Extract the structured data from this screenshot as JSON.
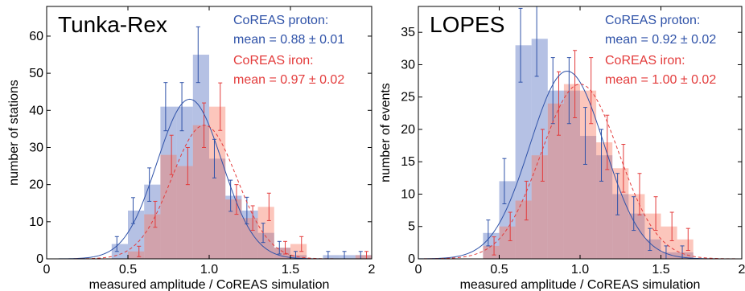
{
  "chart_data": [
    {
      "type": "bar",
      "panel_label": "Tunka-Rex",
      "xlabel": "measured amplitude / CoREAS simulation",
      "ylabel": "number of stations",
      "xlim": [
        0,
        2
      ],
      "ylim": [
        0,
        68
      ],
      "xticks": [
        0,
        0.5,
        1.0,
        1.5,
        2
      ],
      "xtick_labels": [
        "0",
        "0.5",
        "1.0",
        "1.5",
        "2"
      ],
      "yticks": [
        0,
        10,
        20,
        30,
        40,
        50,
        60
      ],
      "bin_width": 0.1,
      "bins_left": [
        0.3,
        0.4,
        0.5,
        0.6,
        0.7,
        0.8,
        0.9,
        1.0,
        1.1,
        1.2,
        1.3,
        1.4,
        1.5,
        1.6,
        1.7,
        1.8,
        1.9
      ],
      "series": [
        {
          "label": "CoREAS proton:",
          "stat": "mean = 0.88 ± 0.01",
          "color": "#2f52a8",
          "values": [
            0,
            4,
            13,
            20,
            41,
            41,
            55,
            27,
            17,
            13,
            7,
            3,
            1,
            0,
            1,
            1,
            1
          ],
          "errors": [
            0,
            2,
            3.5,
            4.5,
            6.5,
            6.5,
            7.5,
            5.2,
            4.2,
            3.6,
            2.6,
            1.7,
            1,
            0,
            1,
            1,
            1
          ],
          "fit": {
            "mu": 0.88,
            "sigma": 0.2,
            "amp": 43
          }
        },
        {
          "label": "CoREAS iron:",
          "stat": "mean = 0.97 ± 0.02",
          "color": "#e33b3b",
          "values": [
            0,
            0,
            2,
            12,
            28,
            25,
            36,
            41,
            16,
            11,
            14,
            3,
            4,
            0,
            0,
            0,
            1
          ],
          "errors": [
            0,
            0,
            1.4,
            3.5,
            5.3,
            5,
            6,
            6.4,
            4,
            3.3,
            3.7,
            1.7,
            2,
            0,
            0,
            0,
            1
          ],
          "fit": {
            "mu": 0.97,
            "sigma": 0.2,
            "amp": 36
          }
        }
      ]
    },
    {
      "type": "bar",
      "panel_label": "LOPES",
      "xlabel": "measured amplitude / CoREAS simulation",
      "ylabel": "number of events",
      "xlim": [
        0,
        2
      ],
      "ylim": [
        0,
        39
      ],
      "xticks": [
        0,
        0.5,
        1.0,
        1.5,
        2
      ],
      "xtick_labels": [
        "0",
        "0.5",
        "1.0",
        "1.5",
        "2"
      ],
      "yticks": [
        0,
        5,
        10,
        15,
        20,
        25,
        30,
        35
      ],
      "bin_width": 0.1,
      "bins_left": [
        0.4,
        0.5,
        0.6,
        0.7,
        0.8,
        0.9,
        1.0,
        1.1,
        1.2,
        1.3,
        1.4,
        1.5,
        1.6
      ],
      "series": [
        {
          "label": "CoREAS proton:",
          "stat": "mean = 0.92 ± 0.02",
          "color": "#2f52a8",
          "values": [
            4,
            12,
            33,
            34,
            26,
            26,
            19,
            16,
            10,
            7,
            3,
            1,
            1
          ],
          "errors": [
            2,
            3.5,
            5.7,
            5.8,
            5.1,
            5.1,
            4.4,
            4,
            3.2,
            2.6,
            1.7,
            1,
            1
          ],
          "fit": {
            "mu": 0.92,
            "sigma": 0.23,
            "amp": 29
          }
        },
        {
          "label": "CoREAS iron:",
          "stat": "mean = 1.00 ± 0.02",
          "color": "#e33b3b",
          "values": [
            2,
            5,
            9,
            16,
            24,
            27,
            26,
            18,
            14,
            10,
            7,
            5,
            3
          ],
          "errors": [
            1.4,
            2.2,
            3,
            4,
            4.9,
            5.2,
            5.1,
            4.2,
            3.7,
            3.2,
            2.6,
            2.2,
            1.7
          ],
          "fit": {
            "mu": 1.0,
            "sigma": 0.24,
            "amp": 27
          }
        }
      ]
    }
  ]
}
